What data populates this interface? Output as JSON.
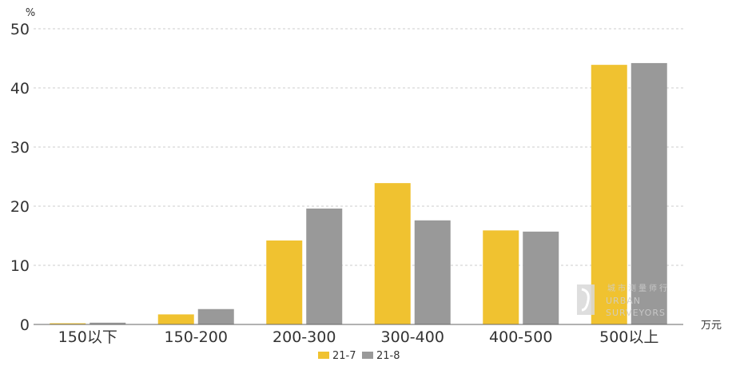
{
  "chart_data": {
    "type": "bar",
    "title": "",
    "ylabel": "%",
    "xlabel": "万元",
    "categories": [
      "150以下",
      "150-200",
      "200-300",
      "300-400",
      "400-500",
      "500以上"
    ],
    "ylim": [
      0,
      50
    ],
    "yticks": [
      "0",
      "10",
      "20",
      "30",
      "40",
      "50"
    ],
    "grid": true,
    "legend": "bottom",
    "series": [
      {
        "name": "21-7",
        "color": "#F0C230",
        "values": [
          0.2,
          1.7,
          14.2,
          23.9,
          15.9,
          43.9
        ]
      },
      {
        "name": "21-8",
        "color": "#999999",
        "values": [
          0.3,
          2.6,
          19.6,
          17.6,
          15.7,
          44.2
        ]
      }
    ]
  },
  "watermark": {
    "cn": "城市测量师行",
    "en_line1": "URBAN",
    "en_line2": "SURVEYORS"
  }
}
